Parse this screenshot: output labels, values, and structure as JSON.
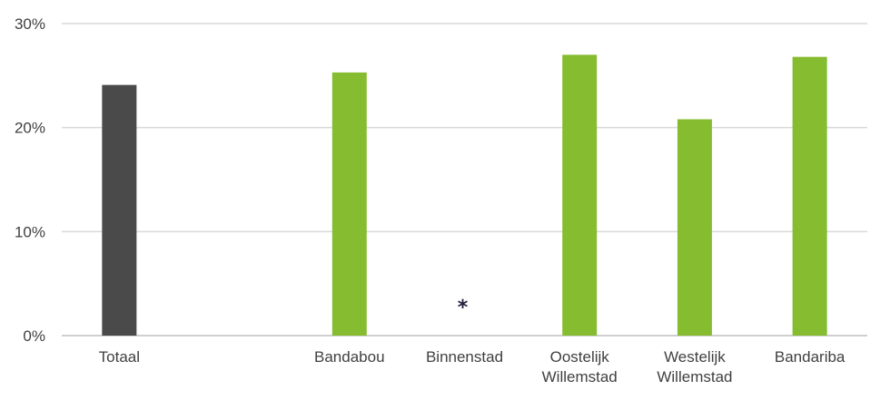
{
  "chart_data": {
    "type": "bar",
    "categories": [
      "Totaal",
      "",
      "Bandabou",
      "Binnenstad",
      "Oostelijk Willemstad",
      "Westelijk Willemstad",
      "Bandariba"
    ],
    "category_lines": [
      [
        "Totaal"
      ],
      [],
      [
        "Bandabou"
      ],
      [
        "Binnenstad"
      ],
      [
        "Oostelijk",
        "Willemstad"
      ],
      [
        "Westelijk",
        "Willemstad"
      ],
      [
        "Bandariba"
      ]
    ],
    "values": [
      24.1,
      null,
      25.3,
      null,
      27.0,
      20.8,
      26.8
    ],
    "bar_colors": [
      "#4a4a4a",
      null,
      "#86bc2f",
      null,
      "#86bc2f",
      "#86bc2f",
      "#86bc2f"
    ],
    "annotations": [
      {
        "category": "Binnenstad",
        "text": "*",
        "y": 2.8
      }
    ],
    "title": "",
    "xlabel": "",
    "ylabel": "",
    "ylim": [
      0,
      30
    ],
    "yticks": [
      0,
      10,
      20,
      30
    ],
    "ytick_labels": [
      "0%",
      "10%",
      "20%",
      "30%"
    ],
    "grid": true,
    "colors": {
      "total": "#4a4a4a",
      "region": "#86bc2f",
      "grid": "#d9d9d9",
      "text": "#404040"
    }
  }
}
